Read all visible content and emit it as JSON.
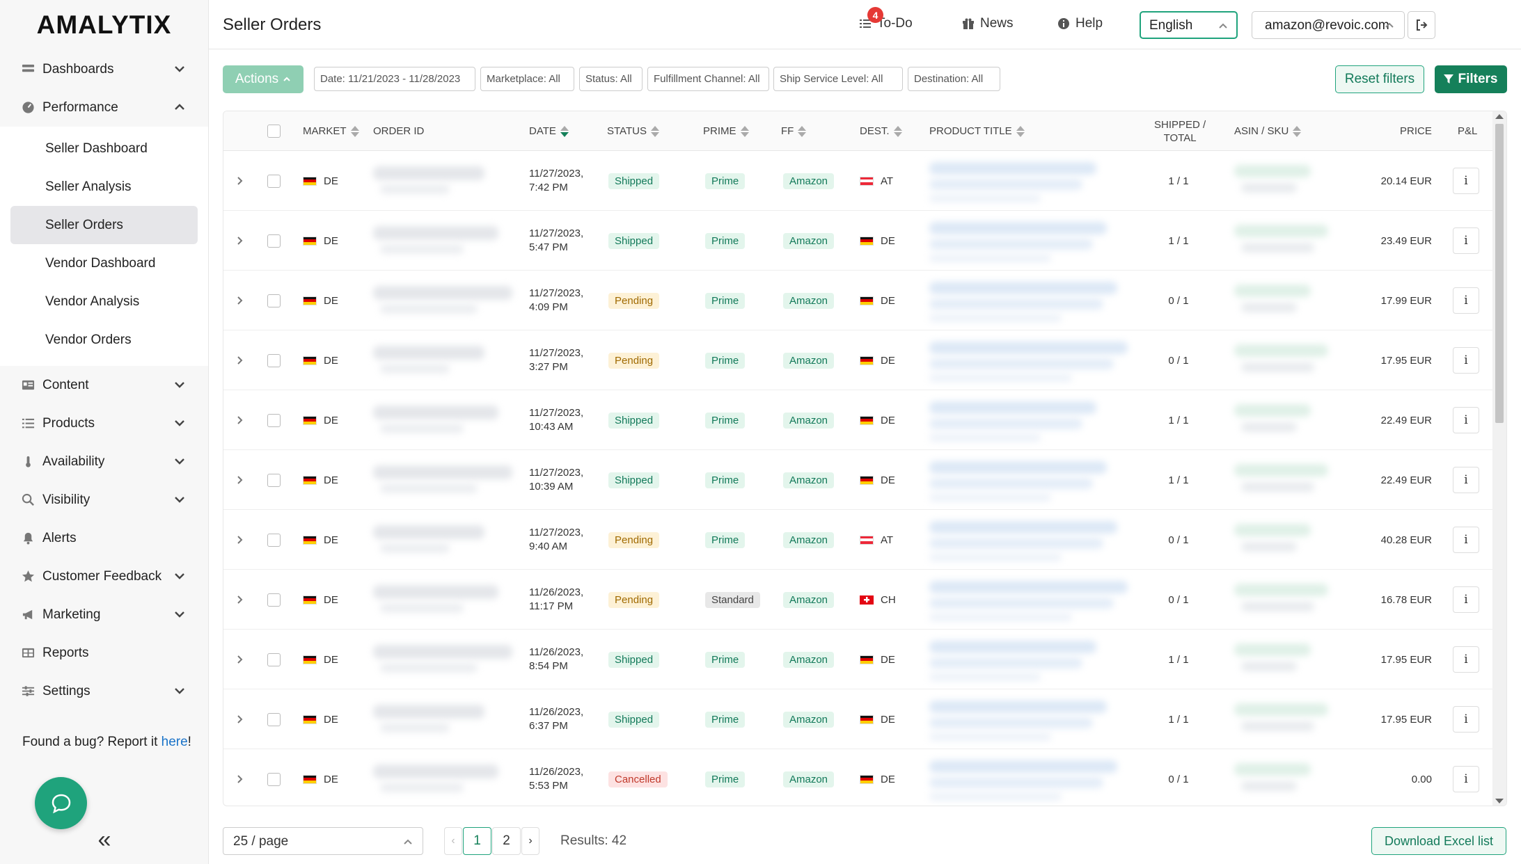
{
  "app": {
    "logo": "AMALYTIX"
  },
  "sidebar": {
    "items": [
      {
        "label": "Dashboards",
        "icon": "dashboard-icon",
        "expandable": true
      },
      {
        "label": "Performance",
        "icon": "gauge-icon",
        "expandable": true,
        "expanded": true,
        "children": [
          {
            "label": "Seller Dashboard"
          },
          {
            "label": "Seller Analysis"
          },
          {
            "label": "Seller Orders",
            "active": true
          },
          {
            "label": "Vendor Dashboard"
          },
          {
            "label": "Vendor Analysis"
          },
          {
            "label": "Vendor Orders"
          }
        ]
      },
      {
        "label": "Content",
        "icon": "content-icon",
        "expandable": true
      },
      {
        "label": "Products",
        "icon": "list-icon",
        "expandable": true
      },
      {
        "label": "Availability",
        "icon": "thermometer-icon",
        "expandable": true
      },
      {
        "label": "Visibility",
        "icon": "search-icon",
        "expandable": true
      },
      {
        "label": "Alerts",
        "icon": "bell-icon",
        "expandable": false
      },
      {
        "label": "Customer Feedback",
        "icon": "star-icon",
        "expandable": true
      },
      {
        "label": "Marketing",
        "icon": "megaphone-icon",
        "expandable": true
      },
      {
        "label": "Reports",
        "icon": "table-icon",
        "expandable": false
      },
      {
        "label": "Settings",
        "icon": "sliders-icon",
        "expandable": true
      }
    ],
    "bug_text": "Found a bug? Report it ",
    "bug_link": "here",
    "bug_end": "!",
    "collapse_glyph": "«"
  },
  "header": {
    "title": "Seller Orders",
    "todo_label": "To-Do",
    "todo_count": "4",
    "news_label": "News",
    "help_label": "Help",
    "language": "English",
    "account": "amazon@revoic.com"
  },
  "filters": {
    "actions_label": "Actions",
    "chips": [
      "Date: 11/21/2023 - 11/28/2023",
      "Marketplace: All",
      "Status: All",
      "Fulfillment Channel: All",
      "Ship Service Level: All",
      "Destination: All"
    ],
    "reset_label": "Reset filters",
    "filters_label": "Filters"
  },
  "table": {
    "columns": {
      "market": "MARKET",
      "order_id": "ORDER ID",
      "date": "DATE",
      "status": "STATUS",
      "prime": "PRIME",
      "ff": "FF",
      "dest": "DEST.",
      "product_title": "PRODUCT TITLE",
      "shipped_total_1": "SHIPPED /",
      "shipped_total_2": "TOTAL",
      "asin_sku": "ASIN / SKU",
      "price": "PRICE",
      "pnl": "P&L"
    },
    "rows": [
      {
        "market": "DE",
        "date1": "11/27/2023,",
        "date2": "7:42 PM",
        "status": "Shipped",
        "prime": "Prime",
        "ff": "Amazon",
        "dest": "AT",
        "shipped": "1 / 1",
        "price": "20.14 EUR"
      },
      {
        "market": "DE",
        "date1": "11/27/2023,",
        "date2": "5:47 PM",
        "status": "Shipped",
        "prime": "Prime",
        "ff": "Amazon",
        "dest": "DE",
        "shipped": "1 / 1",
        "price": "23.49 EUR"
      },
      {
        "market": "DE",
        "date1": "11/27/2023,",
        "date2": "4:09 PM",
        "status": "Pending",
        "prime": "Prime",
        "ff": "Amazon",
        "dest": "DE",
        "shipped": "0 / 1",
        "price": "17.99 EUR"
      },
      {
        "market": "DE",
        "date1": "11/27/2023,",
        "date2": "3:27 PM",
        "status": "Pending",
        "prime": "Prime",
        "ff": "Amazon",
        "dest": "DE",
        "shipped": "0 / 1",
        "price": "17.95 EUR"
      },
      {
        "market": "DE",
        "date1": "11/27/2023,",
        "date2": "10:43 AM",
        "status": "Shipped",
        "prime": "Prime",
        "ff": "Amazon",
        "dest": "DE",
        "shipped": "1 / 1",
        "price": "22.49 EUR"
      },
      {
        "market": "DE",
        "date1": "11/27/2023,",
        "date2": "10:39 AM",
        "status": "Shipped",
        "prime": "Prime",
        "ff": "Amazon",
        "dest": "DE",
        "shipped": "1 / 1",
        "price": "22.49 EUR"
      },
      {
        "market": "DE",
        "date1": "11/27/2023,",
        "date2": "9:40 AM",
        "status": "Pending",
        "prime": "Prime",
        "ff": "Amazon",
        "dest": "AT",
        "shipped": "0 / 1",
        "price": "40.28 EUR"
      },
      {
        "market": "DE",
        "date1": "11/26/2023,",
        "date2": "11:17 PM",
        "status": "Pending",
        "prime": "Standard",
        "ff": "Amazon",
        "dest": "CH",
        "shipped": "0 / 1",
        "price": "16.78 EUR"
      },
      {
        "market": "DE",
        "date1": "11/26/2023,",
        "date2": "8:54 PM",
        "status": "Shipped",
        "prime": "Prime",
        "ff": "Amazon",
        "dest": "DE",
        "shipped": "1 / 1",
        "price": "17.95 EUR"
      },
      {
        "market": "DE",
        "date1": "11/26/2023,",
        "date2": "6:37 PM",
        "status": "Shipped",
        "prime": "Prime",
        "ff": "Amazon",
        "dest": "DE",
        "shipped": "1 / 1",
        "price": "17.95 EUR"
      },
      {
        "market": "DE",
        "date1": "11/26/2023,",
        "date2": "5:53 PM",
        "status": "Cancelled",
        "prime": "Prime",
        "ff": "Amazon",
        "dest": "DE",
        "shipped": "0 / 1",
        "price": "0.00"
      }
    ],
    "info_glyph": "i"
  },
  "footer": {
    "per_page": "25 / page",
    "pages": [
      "1",
      "2"
    ],
    "current_page": "1",
    "results": "Results: 42",
    "download_label": "Download Excel list"
  },
  "colors": {
    "accent": "#1fa37c",
    "accent_dark": "#15805a",
    "shipped": "#137a5a",
    "pending": "#a06a00",
    "cancelled": "#c0392b"
  }
}
